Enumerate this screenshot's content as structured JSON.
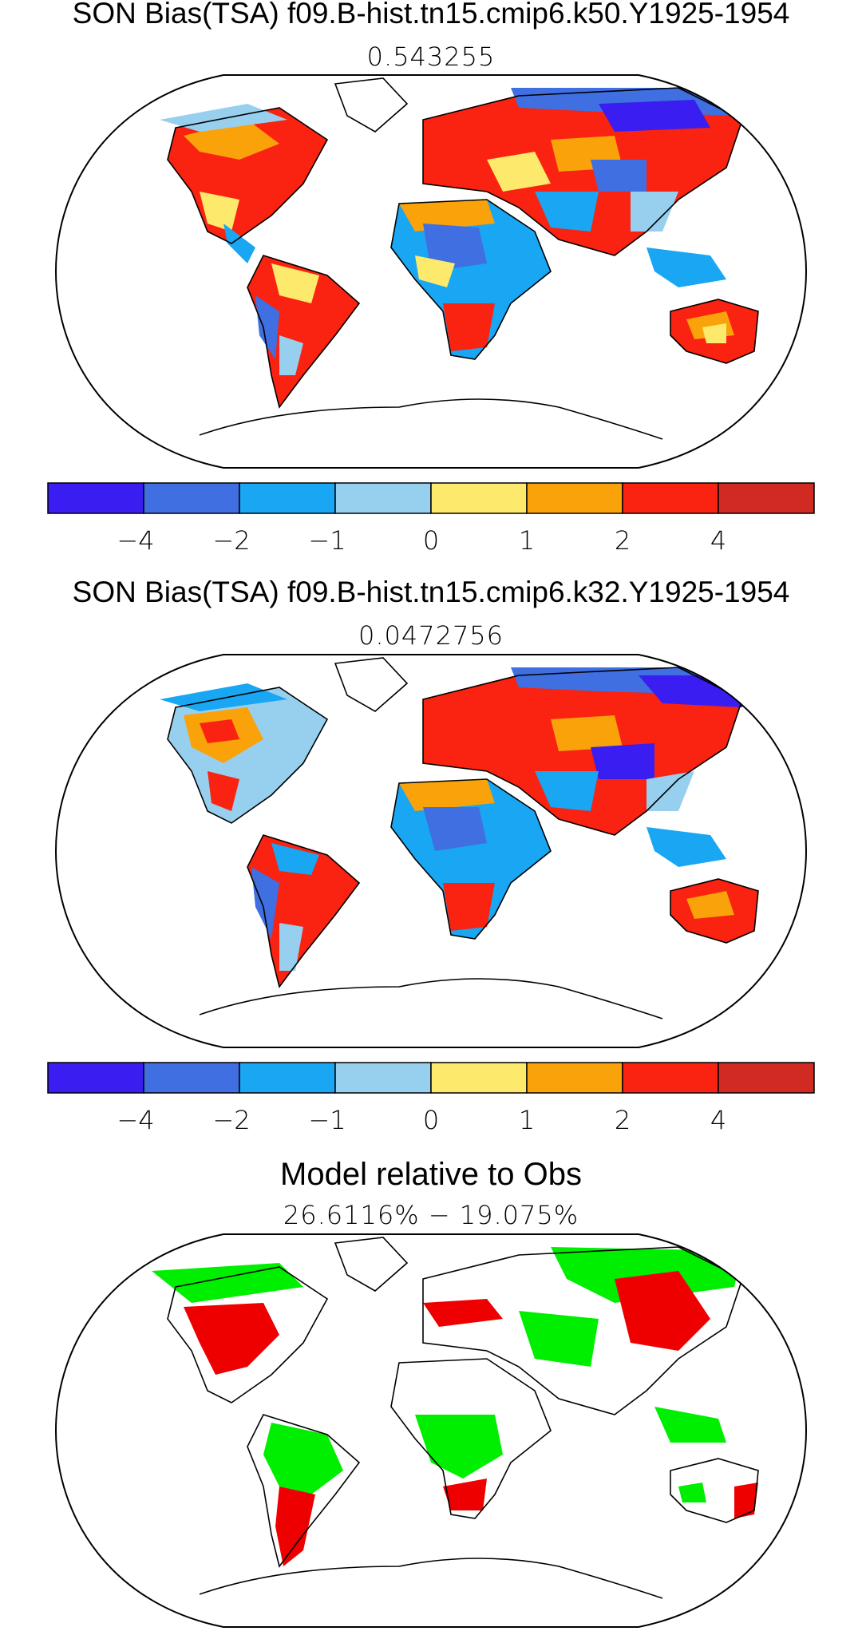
{
  "panels": [
    {
      "title": "SON Bias(TSA) f09.B-hist.tn15.cmip6.k50.Y1925-1954",
      "subtitle": "0.543255",
      "colorbar": {
        "colors": [
          "#3a1df0",
          "#3f6fe0",
          "#19a6f2",
          "#97d0ee",
          "#fde96b",
          "#f9a20a",
          "#fa2210",
          "#d12a22"
        ],
        "tick_labels": [
          "−4",
          "−2",
          "−1",
          "0",
          "1",
          "2",
          "4"
        ]
      }
    },
    {
      "title": "SON Bias(TSA) f09.B-hist.tn15.cmip6.k32.Y1925-1954",
      "subtitle": "0.0472756",
      "colorbar": {
        "colors": [
          "#3a1df0",
          "#3f6fe0",
          "#19a6f2",
          "#97d0ee",
          "#fde96b",
          "#f9a20a",
          "#fa2210",
          "#d12a22"
        ],
        "tick_labels": [
          "−4",
          "−2",
          "−1",
          "0",
          "1",
          "2",
          "4"
        ]
      }
    },
    {
      "title": "Model relative to Obs",
      "subtitle": "26.6116% − 19.075%",
      "colors": {
        "better": "#00ee00",
        "worse": "#ee0000"
      }
    }
  ]
}
